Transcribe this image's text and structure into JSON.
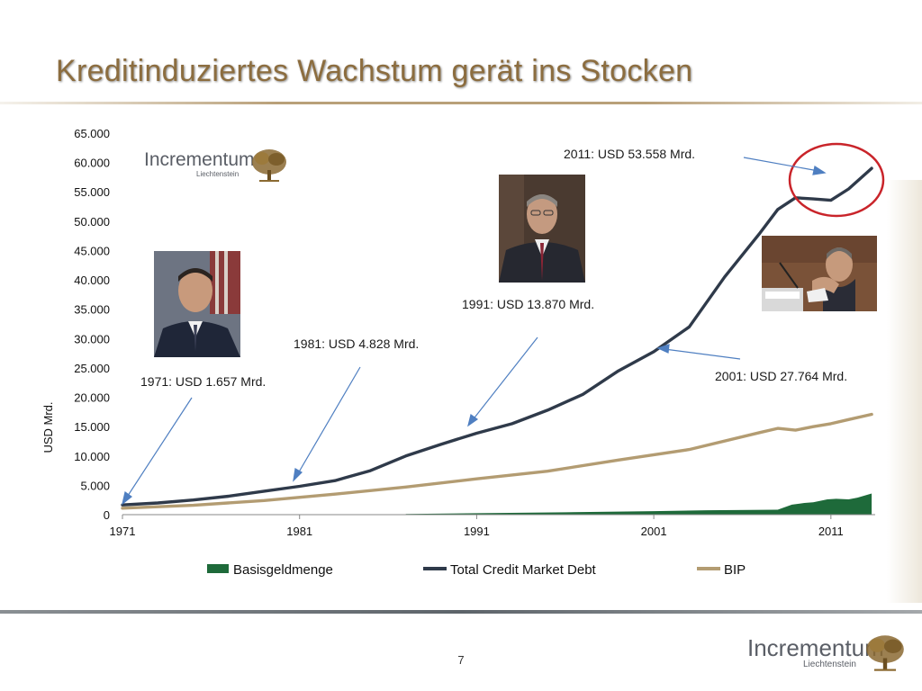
{
  "slide": {
    "title": "Kreditinduziertes Wachstum gerät ins Stocken",
    "page_number": "7"
  },
  "logo": {
    "name": "Incrementum",
    "subtitle": "Liechtenstein",
    "color": "#8b6a32"
  },
  "annotations": {
    "a1971": "1971: USD 1.657 Mrd.",
    "a1981": "1981: USD 4.828 Mrd.",
    "a1991": "1991: USD 13.870 Mrd.",
    "a2001": "2001: USD 27.764 Mrd.",
    "a2011": "2011: USD 53.558 Mrd."
  },
  "colors": {
    "debt": "#2f3a4a",
    "bip": "#b39c72",
    "base": "#1e6a3a",
    "arrow": "#4f7fc1",
    "circle": "#c9242a",
    "title": "#8c6d3f"
  },
  "chart_data": {
    "type": "line",
    "xlabel": "",
    "ylabel": "USD Mrd.",
    "xlim": [
      1971,
      2013.5
    ],
    "ylim": [
      0,
      65000
    ],
    "x_ticks": [
      1971,
      1981,
      1991,
      2001,
      2011
    ],
    "y_ticks": [
      "0",
      "5.000",
      "10.000",
      "15.000",
      "20.000",
      "25.000",
      "30.000",
      "35.000",
      "40.000",
      "45.000",
      "50.000",
      "55.000",
      "60.000",
      "65.000"
    ],
    "legend_position": "bottom",
    "series": [
      {
        "name": "Basisgeldmenge",
        "kind": "area",
        "x": [
          1987,
          1991,
          1996,
          2001,
          2004,
          2008,
          2008.8,
          2009.5,
          2010,
          2010.8,
          2011.3,
          2012,
          2012.5,
          2013.3
        ],
        "y": [
          100,
          250,
          400,
          600,
          750,
          850,
          1700,
          2000,
          2100,
          2600,
          2700,
          2600,
          2900,
          3600
        ]
      },
      {
        "name": "Total Credit Market Debt",
        "kind": "line",
        "x": [
          1971,
          1973,
          1975,
          1977,
          1979,
          1981,
          1983,
          1985,
          1987,
          1989,
          1991,
          1993,
          1995,
          1997,
          1999,
          2001,
          2003,
          2005,
          2007,
          2008,
          2009,
          2010,
          2011,
          2012,
          2013.3
        ],
        "y": [
          1657,
          2000,
          2500,
          3150,
          4000,
          4828,
          5800,
          7500,
          10000,
          12000,
          13870,
          15500,
          17800,
          20500,
          24500,
          27764,
          32000,
          40500,
          48000,
          52000,
          54000,
          53800,
          53558,
          55500,
          59000
        ]
      },
      {
        "name": "BIP",
        "kind": "line",
        "x": [
          1971,
          1975,
          1979,
          1983,
          1987,
          1991,
          1995,
          1999,
          2003,
          2007,
          2008,
          2009,
          2010,
          2011,
          2012,
          2013.3
        ],
        "y": [
          1100,
          1600,
          2400,
          3500,
          4700,
          6100,
          7400,
          9300,
          11100,
          14000,
          14700,
          14400,
          15000,
          15500,
          16200,
          17100
        ]
      }
    ]
  }
}
